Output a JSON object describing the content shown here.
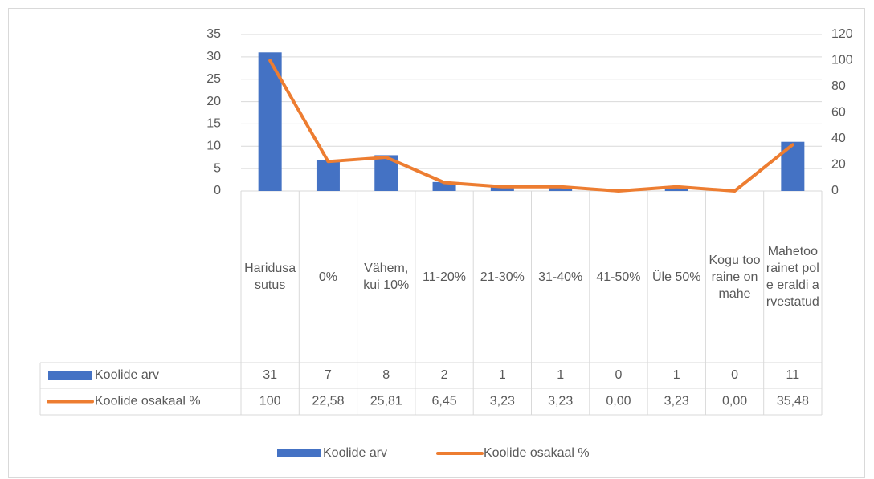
{
  "chart_data": {
    "type": "bar",
    "categories": [
      "Haridusasutus",
      "0%",
      "Vähem, kui 10%",
      "11-20%",
      "21-30%",
      "31-40%",
      "41-50%",
      "Üle 50%",
      "Kogu tooraine on mahe",
      "Mahetoorainet pole eraldi arvestatud"
    ],
    "series": [
      {
        "name": "Koolide arv",
        "type": "bar",
        "color": "#4472c4",
        "values": [
          31,
          7,
          8,
          2,
          1,
          1,
          0,
          1,
          0,
          11
        ]
      },
      {
        "name": "Koolide osakaal %",
        "type": "line",
        "axis": "y2",
        "color": "#ed7d31",
        "values": [
          100,
          22.58,
          25.81,
          6.45,
          3.23,
          3.23,
          0,
          3.23,
          0,
          35.48
        ],
        "value_labels": [
          "100",
          "22,58",
          "25,81",
          "6,45",
          "3,23",
          "3,23",
          "0,00",
          "3,23",
          "0,00",
          "35,48"
        ]
      }
    ],
    "ylim": [
      0,
      35
    ],
    "yticks": [
      0,
      5,
      10,
      15,
      20,
      25,
      30,
      35
    ],
    "y2lim": [
      0,
      120
    ],
    "y2ticks": [
      0,
      20,
      40,
      60,
      80,
      100,
      120
    ],
    "grid": true,
    "legend": "bottom"
  }
}
